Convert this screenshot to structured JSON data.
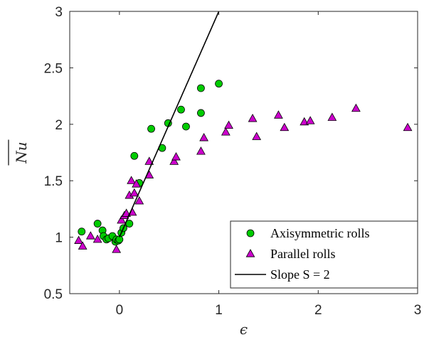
{
  "chart_data": {
    "type": "scatter",
    "title": "",
    "xlabel": "ϵ",
    "ylabel": "Nu",
    "xlim": [
      -0.5,
      3
    ],
    "ylim": [
      0.5,
      3
    ],
    "x_ticks": [
      "0",
      "1",
      "2",
      "3"
    ],
    "x_tick_values": [
      0,
      1,
      2,
      3
    ],
    "y_ticks": [
      "0.5",
      "1",
      "1.5",
      "2",
      "2.5",
      "3"
    ],
    "y_tick_values": [
      0.5,
      1,
      1.5,
      2,
      2.5,
      3
    ],
    "grid": false,
    "legend_position": "bottom-right",
    "series": [
      {
        "name": "Axisymmetric rolls",
        "marker": "circle",
        "color": "#00cc00",
        "x": [
          -0.38,
          -0.22,
          -0.17,
          -0.16,
          -0.13,
          -0.11,
          -0.07,
          -0.04,
          -0.03,
          -0.01,
          0.0,
          0.02,
          0.04,
          0.1,
          0.15,
          0.2,
          0.32,
          0.43,
          0.49,
          0.62,
          0.67,
          0.82,
          0.82,
          1.0
        ],
        "y": [
          1.05,
          1.12,
          1.06,
          1.01,
          0.98,
          0.99,
          1.01,
          0.96,
          0.98,
          0.97,
          0.98,
          1.04,
          1.08,
          1.12,
          1.72,
          1.48,
          1.96,
          1.79,
          2.01,
          2.13,
          1.98,
          2.1,
          2.32,
          2.36
        ]
      },
      {
        "name": "Parallel rolls",
        "marker": "triangle",
        "color": "#cc00cc",
        "x": [
          -0.41,
          -0.37,
          -0.29,
          -0.22,
          -0.03,
          0.02,
          0.05,
          0.07,
          0.1,
          0.12,
          0.13,
          0.15,
          0.17,
          0.2,
          0.3,
          0.3,
          0.55,
          0.57,
          0.82,
          0.85,
          1.07,
          1.1,
          1.34,
          1.38,
          1.6,
          1.66,
          1.86,
          1.92,
          2.14,
          2.38,
          2.9
        ],
        "y": [
          0.97,
          0.92,
          1.01,
          0.98,
          0.89,
          1.15,
          1.19,
          1.21,
          1.37,
          1.5,
          1.22,
          1.39,
          1.47,
          1.32,
          1.55,
          1.67,
          1.67,
          1.71,
          1.76,
          1.88,
          1.93,
          1.99,
          2.05,
          1.89,
          2.08,
          1.97,
          2.02,
          2.03,
          2.06,
          2.14,
          1.97
        ]
      },
      {
        "name": "Slope S = 2",
        "type": "line",
        "color": "#000000",
        "x": [
          0.0,
          1.0
        ],
        "y": [
          1.0,
          3.0
        ]
      }
    ]
  }
}
